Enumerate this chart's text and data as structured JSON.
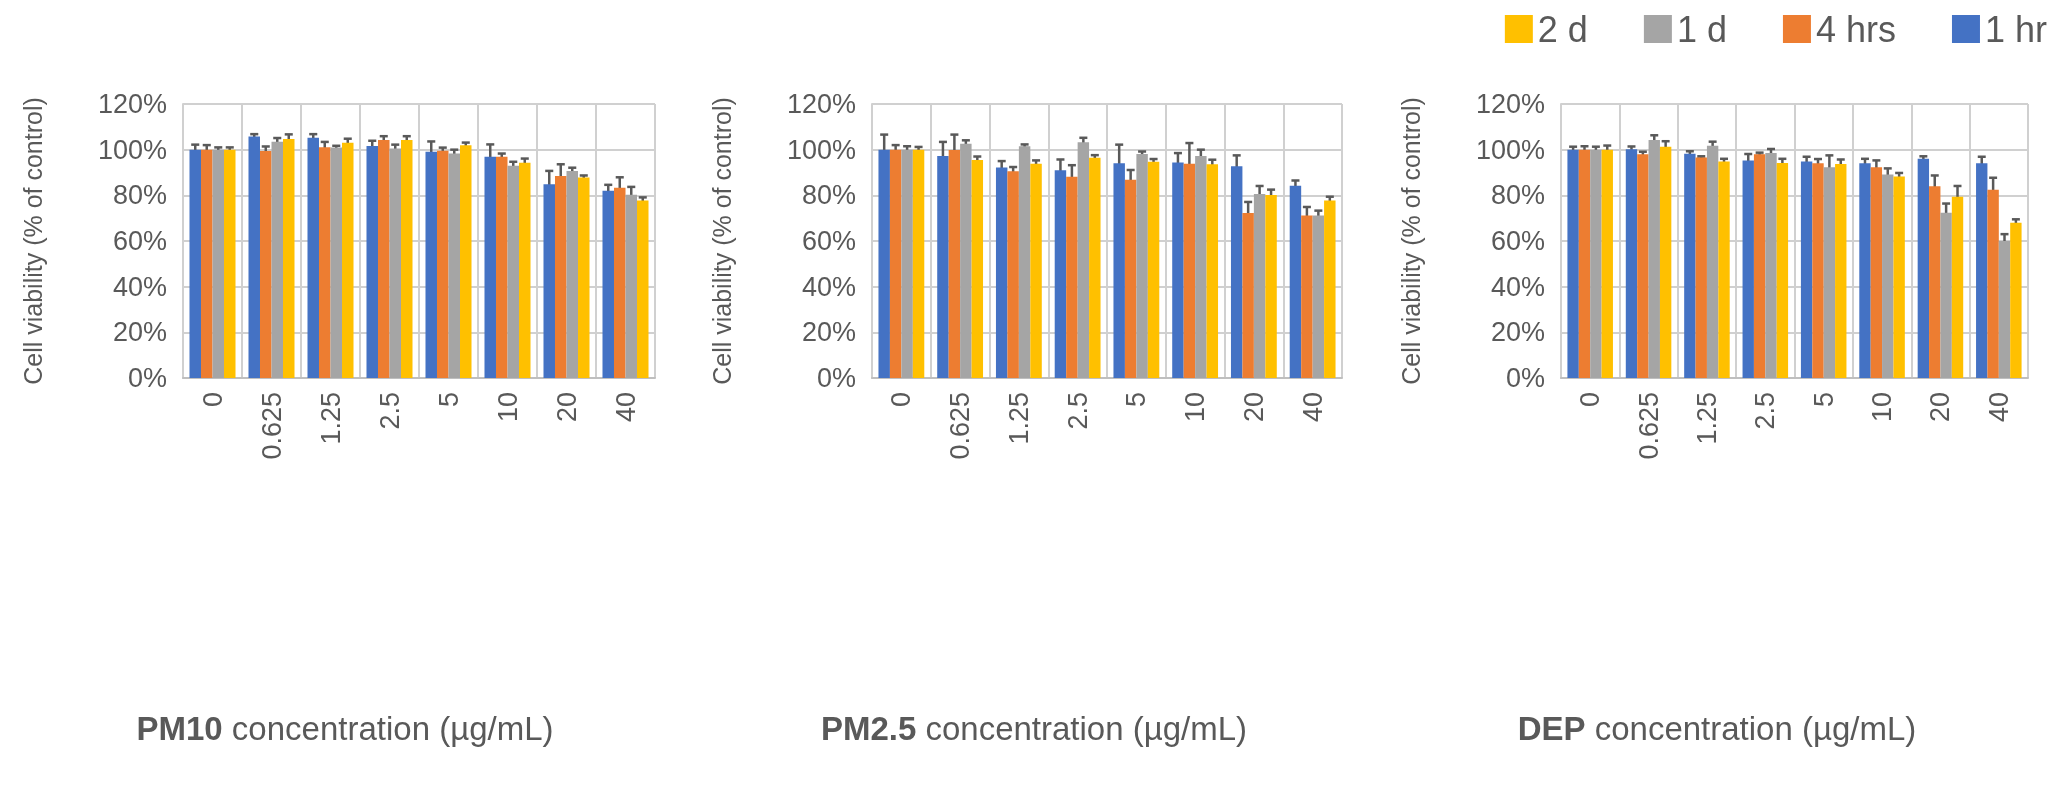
{
  "chart_data": [
    {
      "type": "bar",
      "xlabel": "PM10 concentration (µg/mL)",
      "ylabel": "Cell viability (% of control)",
      "categories": [
        "0",
        "0.625",
        "1.25",
        "2.5",
        "5",
        "10",
        "20",
        "40"
      ],
      "series": [
        {
          "color": "#4472c4",
          "values": [
            100,
            105.8,
            105.2,
            101.6,
            99.1,
            96.9,
            84.8,
            82
          ],
          "errors": [
            2.2,
            1,
            1.6,
            2.3,
            4.5,
            5.4,
            5.9,
            2.6
          ]
        },
        {
          "color": "#ed7d31",
          "values": [
            100,
            99.4,
            101.1,
            104.2,
            99.5,
            96.9,
            88.5,
            83.3
          ],
          "errors": [
            2,
            2,
            2.3,
            1.7,
            1.4,
            1.4,
            5.1,
            4.6
          ]
        },
        {
          "color": "#a5a5a5",
          "values": [
            100,
            103.5,
            100.9,
            100.5,
            98.3,
            93,
            90.7,
            80.3
          ],
          "errors": [
            1,
            1.6,
            0.8,
            1.7,
            1.7,
            1.7,
            1.4,
            3.4
          ]
        },
        {
          "color": "#ffc000",
          "values": [
            100,
            104.7,
            103,
            104.2,
            101.9,
            94.3,
            87.8,
            77.7
          ],
          "errors": [
            1,
            2,
            1.8,
            1.7,
            1.2,
            1.8,
            0.9,
            1.4
          ]
        }
      ],
      "ylim": [
        0,
        120
      ],
      "yticks": [
        {
          "value": 0,
          "label": "0%"
        },
        {
          "value": 20,
          "label": "20%"
        },
        {
          "value": 40,
          "label": "40%"
        },
        {
          "value": 60,
          "label": "60%"
        },
        {
          "value": 80,
          "label": "80%"
        },
        {
          "value": 100,
          "label": "100%"
        },
        {
          "value": 120,
          "label": "120%"
        }
      ],
      "grid": true,
      "legend": false
    },
    {
      "type": "bar",
      "xlabel": "PM2.5 concentration (µg/mL)",
      "ylabel": "Cell viability (% of control)",
      "categories": [
        "0",
        "0.625",
        "1.25",
        "2.5",
        "5",
        "10",
        "20",
        "40"
      ],
      "series": [
        {
          "color": "#4472c4",
          "values": [
            100,
            97.2,
            92.2,
            91,
            94.1,
            94.4,
            92.7,
            84.2
          ],
          "errors": [
            6.6,
            6.2,
            2.8,
            4.7,
            8.1,
            4.1,
            4.8,
            2.3
          ]
        },
        {
          "color": "#ed7d31",
          "values": [
            100,
            99.8,
            90.5,
            88.1,
            86.8,
            93.8,
            72.3,
            71.2
          ],
          "errors": [
            2,
            6.8,
            1.9,
            5.1,
            4.3,
            9.1,
            4.8,
            3.7
          ]
        },
        {
          "color": "#a5a5a5",
          "values": [
            100,
            102.6,
            101.5,
            103.2,
            98.1,
            97.2,
            80.6,
            71.2
          ],
          "errors": [
            1.5,
            1.5,
            0.8,
            2,
            1.1,
            2.8,
            3.5,
            2.1
          ]
        },
        {
          "color": "#ffc000",
          "values": [
            100,
            95.5,
            93.8,
            96.5,
            94.7,
            93.6,
            80.2,
            77.7
          ],
          "errors": [
            1.2,
            1.5,
            1.5,
            1.1,
            1.2,
            2,
            2.3,
            1.7
          ]
        }
      ],
      "ylim": [
        0,
        120
      ],
      "yticks": [
        {
          "value": 0,
          "label": "0%"
        },
        {
          "value": 20,
          "label": "20%"
        },
        {
          "value": 40,
          "label": "40%"
        },
        {
          "value": 60,
          "label": "60%"
        },
        {
          "value": 80,
          "label": "80%"
        },
        {
          "value": 100,
          "label": "100%"
        },
        {
          "value": 120,
          "label": "120%"
        }
      ],
      "grid": true,
      "legend": false
    },
    {
      "type": "bar",
      "xlabel": "DEP concentration (µg/mL)",
      "ylabel": "Cell viability (% of control)",
      "categories": [
        "0",
        "0.625",
        "1.25",
        "2.5",
        "5",
        "10",
        "20",
        "40"
      ],
      "series": [
        {
          "name": "1 hr",
          "color": "#4472c4",
          "values": [
            100,
            100.2,
            98.2,
            95.3,
            94.8,
            94,
            96,
            94
          ],
          "errors": [
            1.3,
            1.2,
            1.1,
            2.8,
            2.1,
            2,
            1.1,
            2.9
          ]
        },
        {
          "name": "4 hrs",
          "color": "#ed7d31",
          "values": [
            100,
            98,
            96.6,
            98,
            94,
            92.3,
            84,
            82.4
          ],
          "errors": [
            1.5,
            1.1,
            0.5,
            0.7,
            1.9,
            3,
            4.7,
            5.3
          ]
        },
        {
          "name": "1 d",
          "color": "#a5a5a5",
          "values": [
            100,
            104.2,
            101.7,
            98.5,
            92.3,
            89.1,
            72.4,
            60
          ],
          "errors": [
            1.3,
            2.1,
            1.8,
            1.8,
            5.2,
            2.7,
            4,
            3
          ]
        },
        {
          "name": "2 d",
          "color": "#ffc000",
          "values": [
            100,
            101.3,
            94.8,
            94.2,
            93.7,
            88.3,
            79.4,
            68
          ],
          "errors": [
            1.8,
            2.4,
            1.2,
            1.8,
            2,
            1.5,
            4.7,
            1.5
          ]
        }
      ],
      "ylim": [
        0,
        120
      ],
      "yticks": [
        {
          "value": 0,
          "label": "0%"
        },
        {
          "value": 20,
          "label": "20%"
        },
        {
          "value": 40,
          "label": "40%"
        },
        {
          "value": 60,
          "label": "60%"
        },
        {
          "value": 80,
          "label": "80%"
        },
        {
          "value": 100,
          "label": "100%"
        },
        {
          "value": 120,
          "label": "120%"
        }
      ],
      "grid": true,
      "legend": "top"
    }
  ]
}
